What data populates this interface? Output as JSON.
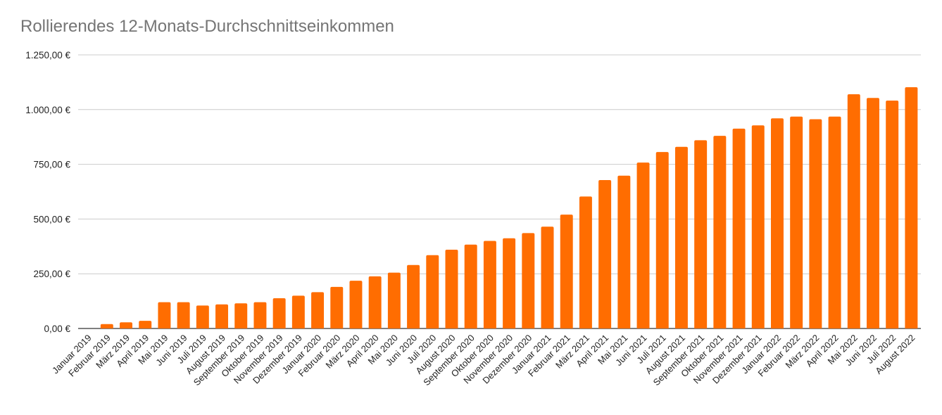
{
  "chart_data": {
    "type": "bar",
    "title": "Rollierendes 12-Monats-Durchschnittseinkommen",
    "xlabel": "",
    "ylabel": "",
    "ylim": [
      0,
      1250
    ],
    "y_ticks": [
      "0,00 €",
      "250,00 €",
      "500,00 €",
      "750,00 €",
      "1.000,00 €",
      "1.250,00 €"
    ],
    "y_tick_values": [
      0,
      250,
      500,
      750,
      1000,
      1250
    ],
    "grid": true,
    "legend": "none",
    "bar_color": "#ff6d01",
    "categories": [
      "Januar 2019",
      "Februar 2019",
      "März 2019",
      "April 2019",
      "Mai 2019",
      "Juni 2019",
      "Juli 2019",
      "August 2019",
      "September 2019",
      "Oktober 2019",
      "November 2019",
      "Dezember 2019",
      "Januar 2020",
      "Februar 2020",
      "März 2020",
      "April 2020",
      "Mai 2020",
      "Juni 2020",
      "Juli 2020",
      "August 2020",
      "September 2020",
      "Oktober 2020",
      "November 2020",
      "Dezember 2020",
      "Januar 2021",
      "Februar 2021",
      "März 2021",
      "April 2021",
      "Mai 2021",
      "Juni 2021",
      "Juli 2021",
      "August 2021",
      "September 2021",
      "Oktober 2021",
      "November 2021",
      "Dezember 2021",
      "Januar 2022",
      "Februar 2022",
      "März 2022",
      "April 2022",
      "Mai 2022",
      "Juni 2022",
      "Juli 2022",
      "August 2022"
    ],
    "values": [
      0,
      20,
      28,
      35,
      120,
      120,
      105,
      110,
      115,
      120,
      138,
      150,
      166,
      190,
      218,
      238,
      255,
      290,
      335,
      360,
      383,
      400,
      412,
      436,
      465,
      520,
      603,
      678,
      698,
      758,
      806,
      830,
      860,
      880,
      913,
      928,
      960,
      968,
      956,
      968,
      1070,
      1053,
      1041,
      1102
    ]
  }
}
